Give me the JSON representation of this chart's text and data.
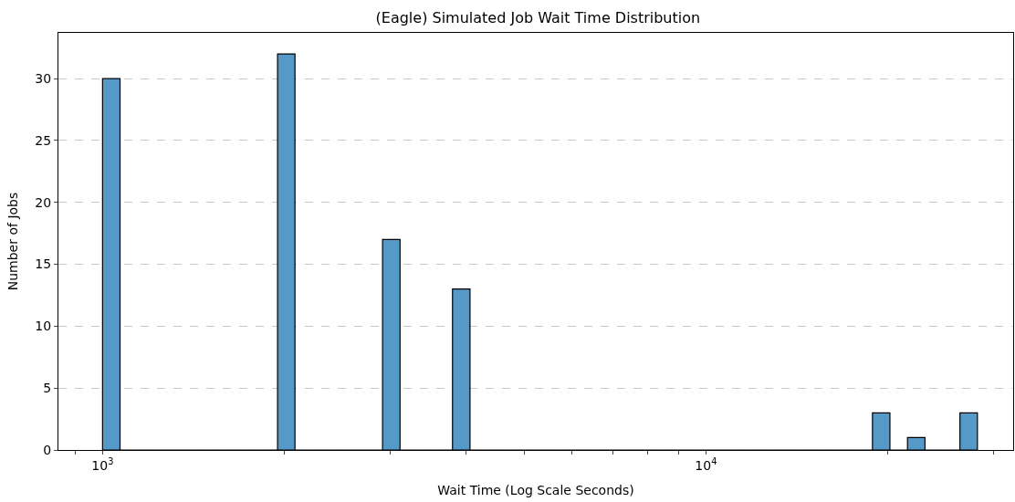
{
  "chart_data": {
    "type": "histogram",
    "title": "(Eagle) Simulated Job Wait Time Distribution",
    "xlabel": "Wait Time (Log Scale Seconds)",
    "ylabel": "Number of Jobs",
    "bins": [
      1000,
      1069,
      1143,
      1222,
      1306,
      1396,
      1493,
      1596,
      1706,
      1824,
      1950,
      2084,
      2228,
      2382,
      2547,
      2723,
      2911,
      3112,
      3327,
      3556,
      3802,
      4064,
      4345,
      4645,
      4966,
      5309,
      5675,
      6067,
      6486,
      6934,
      7413,
      7924,
      8472,
      9057,
      9682,
      10351,
      11066,
      11830,
      12647,
      13520,
      14454,
      15451,
      16518,
      17659,
      18880,
      20180,
      21580,
      23070,
      24660,
      26360,
      28180
    ],
    "values": [
      30,
      0,
      0,
      0,
      0,
      0,
      0,
      0,
      0,
      0,
      32,
      0,
      0,
      0,
      0,
      0,
      17,
      0,
      0,
      0,
      13,
      0,
      0,
      0,
      0,
      0,
      0,
      0,
      0,
      0,
      0,
      0,
      0,
      0,
      0,
      0,
      0,
      0,
      0,
      0,
      0,
      0,
      0,
      0,
      3,
      0,
      1,
      0,
      0,
      3
    ],
    "color": "#5499c8",
    "log": "x",
    "grid": "y",
    "xlim": [
      845,
      32300
    ],
    "xticks": [
      {
        "value": 900,
        "label": null
      },
      {
        "value": 1000,
        "label": "10$^{3}$"
      },
      {
        "value": 2000,
        "label": null
      },
      {
        "value": 3000,
        "label": null
      },
      {
        "value": 4000,
        "label": null
      },
      {
        "value": 5000,
        "label": null
      },
      {
        "value": 6000,
        "label": null
      },
      {
        "value": 7000,
        "label": null
      },
      {
        "value": 8000,
        "label": null
      },
      {
        "value": 9000,
        "label": null
      },
      {
        "value": 10000,
        "label": "10$^{4}$"
      },
      {
        "value": 20000,
        "label": null
      },
      {
        "value": 30000,
        "label": null
      }
    ],
    "ylim": [
      0,
      33.7
    ],
    "yticks": [
      0,
      5,
      10,
      15,
      20,
      25,
      30
    ]
  }
}
